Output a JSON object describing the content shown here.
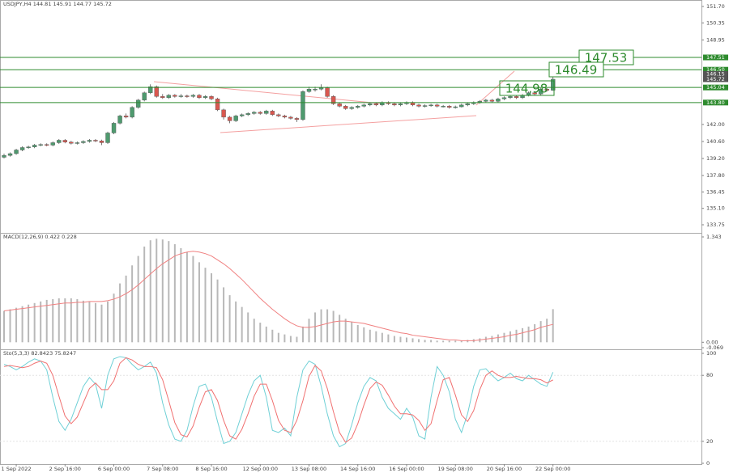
{
  "chart_data": [
    {
      "type": "candlestick",
      "title": "USDJPY,H4 144.81 145.91 144.77 145.72",
      "categories": [
        null,
        null,
        "1 Sep 2022",
        null,
        null,
        null,
        null,
        null,
        null,
        null,
        "2 Sep 16:00",
        null,
        null,
        null,
        null,
        null,
        null,
        null,
        "6 Sep 00:00",
        null,
        null,
        null,
        null,
        null,
        null,
        null,
        "7 Sep 08:00",
        null,
        null,
        null,
        null,
        null,
        null,
        null,
        "8 Sep 16:00",
        null,
        null,
        null,
        null,
        null,
        null,
        null,
        "12 Sep 00:00",
        null,
        null,
        null,
        null,
        null,
        null,
        null,
        "13 Sep 08:00",
        null,
        null,
        null,
        null,
        null,
        null,
        null,
        "14 Sep 16:00",
        null,
        null,
        null,
        null,
        null,
        null,
        null,
        "16 Sep 00:00",
        null,
        null,
        null,
        null,
        null,
        null,
        null,
        "19 Sep 08:00",
        null,
        null,
        null,
        null,
        null,
        null,
        null,
        "20 Sep 16:00",
        null,
        null,
        null,
        null,
        null,
        null,
        null,
        "22 Sep 00:00"
      ],
      "values": [
        [
          139.3,
          139.6,
          139.2,
          139.45
        ],
        [
          139.45,
          139.7,
          139.35,
          139.6
        ],
        [
          139.6,
          140.0,
          139.5,
          139.9
        ],
        [
          139.9,
          140.2,
          139.8,
          140.1
        ],
        [
          140.1,
          140.25,
          140.0,
          140.15
        ],
        [
          140.15,
          140.4,
          140.05,
          140.3
        ],
        [
          140.3,
          140.45,
          140.2,
          140.35
        ],
        [
          140.35,
          140.45,
          140.2,
          140.3
        ],
        [
          140.3,
          140.6,
          140.2,
          140.5
        ],
        [
          140.5,
          140.8,
          140.4,
          140.7
        ],
        [
          140.7,
          140.8,
          140.45,
          140.55
        ],
        [
          140.55,
          140.65,
          140.35,
          140.45
        ],
        [
          140.45,
          140.6,
          140.35,
          140.5
        ],
        [
          140.5,
          140.7,
          140.4,
          140.6
        ],
        [
          140.6,
          140.8,
          140.5,
          140.7
        ],
        [
          140.7,
          140.8,
          140.55,
          140.65
        ],
        [
          140.65,
          140.75,
          140.3,
          140.5
        ],
        [
          140.5,
          141.4,
          140.4,
          141.3
        ],
        [
          141.3,
          142.2,
          141.2,
          142.1
        ],
        [
          142.1,
          142.8,
          142.0,
          142.7
        ],
        [
          142.7,
          142.9,
          142.5,
          142.6
        ],
        [
          142.6,
          143.5,
          142.5,
          143.4
        ],
        [
          143.4,
          144.1,
          143.3,
          144.0
        ],
        [
          144.0,
          144.7,
          143.9,
          144.6
        ],
        [
          144.6,
          145.3,
          144.5,
          145.1
        ],
        [
          145.1,
          145.2,
          144.2,
          144.3
        ],
        [
          144.3,
          144.5,
          144.1,
          144.2
        ],
        [
          144.2,
          144.5,
          144.1,
          144.4
        ],
        [
          144.4,
          144.5,
          144.2,
          144.3
        ],
        [
          144.3,
          144.5,
          144.2,
          144.35
        ],
        [
          144.35,
          144.45,
          144.2,
          144.3
        ],
        [
          144.3,
          144.5,
          144.2,
          144.4
        ],
        [
          144.4,
          144.5,
          144.1,
          144.2
        ],
        [
          144.2,
          144.4,
          144.1,
          144.3
        ],
        [
          144.3,
          144.4,
          144.0,
          144.1
        ],
        [
          144.1,
          144.2,
          143.1,
          143.2
        ],
        [
          143.2,
          143.3,
          142.4,
          142.6
        ],
        [
          142.6,
          142.7,
          142.1,
          142.3
        ],
        [
          142.3,
          142.8,
          142.2,
          142.7
        ],
        [
          142.7,
          142.9,
          142.6,
          142.8
        ],
        [
          142.8,
          143.0,
          142.7,
          142.9
        ],
        [
          142.9,
          143.1,
          142.8,
          143.0
        ],
        [
          143.0,
          143.1,
          142.8,
          142.9
        ],
        [
          142.9,
          143.2,
          142.8,
          143.1
        ],
        [
          143.1,
          143.2,
          142.7,
          142.8
        ],
        [
          142.8,
          142.9,
          142.6,
          142.7
        ],
        [
          142.7,
          142.8,
          142.5,
          142.6
        ],
        [
          142.6,
          142.7,
          142.4,
          142.5
        ],
        [
          142.5,
          142.6,
          142.2,
          142.4
        ],
        [
          142.4,
          144.8,
          142.3,
          144.7
        ],
        [
          144.7,
          145.1,
          144.6,
          144.9
        ],
        [
          144.9,
          145.1,
          144.7,
          144.9
        ],
        [
          144.9,
          145.3,
          144.8,
          145.0
        ],
        [
          145.0,
          145.1,
          144.2,
          144.3
        ],
        [
          144.3,
          144.4,
          143.6,
          143.7
        ],
        [
          143.7,
          143.8,
          143.4,
          143.5
        ],
        [
          143.5,
          143.6,
          143.2,
          143.3
        ],
        [
          143.3,
          143.5,
          143.2,
          143.4
        ],
        [
          143.4,
          143.6,
          143.3,
          143.5
        ],
        [
          143.5,
          143.7,
          143.4,
          143.6
        ],
        [
          143.6,
          143.8,
          143.5,
          143.7
        ],
        [
          143.7,
          143.8,
          143.5,
          143.6
        ],
        [
          143.6,
          143.9,
          143.5,
          143.8
        ],
        [
          143.8,
          143.9,
          143.6,
          143.7
        ],
        [
          143.7,
          143.8,
          143.5,
          143.6
        ],
        [
          143.6,
          143.8,
          143.5,
          143.7
        ],
        [
          143.7,
          143.9,
          143.6,
          143.8
        ],
        [
          143.8,
          143.9,
          143.5,
          143.6
        ],
        [
          143.6,
          143.7,
          143.4,
          143.5
        ],
        [
          143.5,
          143.65,
          143.4,
          143.55
        ],
        [
          143.55,
          143.7,
          143.45,
          143.6
        ],
        [
          143.6,
          143.7,
          143.4,
          143.5
        ],
        [
          143.5,
          143.6,
          143.4,
          143.5
        ],
        [
          143.5,
          143.6,
          143.3,
          143.4
        ],
        [
          143.4,
          143.55,
          143.3,
          143.45
        ],
        [
          143.45,
          143.7,
          143.4,
          143.6
        ],
        [
          143.6,
          143.8,
          143.5,
          143.7
        ],
        [
          143.7,
          143.9,
          143.6,
          143.8
        ],
        [
          143.8,
          144.0,
          143.7,
          143.9
        ],
        [
          143.9,
          144.1,
          143.8,
          144.0
        ],
        [
          144.0,
          144.1,
          143.8,
          143.9
        ],
        [
          143.9,
          144.2,
          143.8,
          144.1
        ],
        [
          144.1,
          144.3,
          144.0,
          144.2
        ],
        [
          144.2,
          144.4,
          144.1,
          144.3
        ],
        [
          144.3,
          144.4,
          144.1,
          144.2
        ],
        [
          144.2,
          144.5,
          144.1,
          144.4
        ],
        [
          144.4,
          144.7,
          144.3,
          144.6
        ],
        [
          144.6,
          144.7,
          144.4,
          144.5
        ],
        [
          144.5,
          145.0,
          144.4,
          144.9
        ],
        [
          144.9,
          145.0,
          144.7,
          144.8
        ],
        [
          144.81,
          145.91,
          144.77,
          145.72
        ]
      ],
      "up_color": "#4e9a6e",
      "down_color": "#d9574f",
      "ylim": [
        133.75,
        151.7
      ],
      "yticks": [
        {
          "value": 151.7,
          "label": "151.70"
        },
        {
          "value": 150.35,
          "label": "150.35"
        },
        {
          "value": 148.95,
          "label": "148.95"
        },
        {
          "value": 142,
          "label": "142.00"
        },
        {
          "value": 140.6,
          "label": "140.60"
        },
        {
          "value": 139.2,
          "label": "139.20"
        },
        {
          "value": 137.8,
          "label": "137.80"
        },
        {
          "value": 136.45,
          "label": "136.45"
        },
        {
          "value": 135.1,
          "label": "135.10"
        },
        {
          "value": 133.75,
          "label": "133.75"
        }
      ],
      "levels": [
        {
          "value": 147.51,
          "label": "147.51"
        },
        {
          "value": 146.5,
          "label": "146.50"
        },
        {
          "value": 145.04,
          "label": "145.04"
        },
        {
          "value": 143.8,
          "label": "143.80"
        }
      ],
      "level_color": "#2e8b2e",
      "markers": [
        {
          "value": 146.15,
          "label": "146.15"
        },
        {
          "value": 145.72,
          "label": "145.72"
        }
      ],
      "marker_color": "#555555",
      "annotations": [
        "147.53",
        "146.49",
        "144.98"
      ]
    },
    {
      "type": "macd",
      "title": "MACD(12,26,9) 0.422 0.228",
      "values": [
        0.4,
        0.42,
        0.44,
        0.46,
        0.48,
        0.5,
        0.52,
        0.54,
        0.55,
        0.56,
        0.56,
        0.56,
        0.55,
        0.53,
        0.52,
        0.5,
        0.48,
        0.52,
        0.62,
        0.75,
        0.85,
        0.98,
        1.1,
        1.22,
        1.3,
        1.32,
        1.31,
        1.29,
        1.25,
        1.2,
        1.15,
        1.1,
        1.02,
        0.95,
        0.88,
        0.8,
        0.7,
        0.6,
        0.52,
        0.45,
        0.38,
        0.3,
        0.25,
        0.2,
        0.16,
        0.12,
        0.1,
        0.08,
        0.07,
        0.2,
        0.3,
        0.38,
        0.42,
        0.42,
        0.4,
        0.35,
        0.3,
        0.26,
        0.22,
        0.19,
        0.16,
        0.14,
        0.12,
        0.1,
        0.08,
        0.07,
        0.06,
        0.05,
        0.04,
        0.03,
        0.03,
        0.02,
        0.02,
        0.02,
        0.02,
        0.02,
        0.03,
        0.04,
        0.05,
        0.07,
        0.08,
        0.1,
        0.12,
        0.14,
        0.16,
        0.18,
        0.2,
        0.23,
        0.27,
        0.3,
        0.422
      ],
      "color": "#b8b8b8",
      "signal": {
        "color": "#f08080",
        "values": [
          0.4,
          0.41,
          0.42,
          0.43,
          0.44,
          0.45,
          0.46,
          0.47,
          0.48,
          0.49,
          0.5,
          0.5,
          0.51,
          0.51,
          0.52,
          0.52,
          0.52,
          0.53,
          0.55,
          0.58,
          0.62,
          0.67,
          0.73,
          0.8,
          0.87,
          0.94,
          1.0,
          1.05,
          1.1,
          1.13,
          1.15,
          1.16,
          1.15,
          1.13,
          1.1,
          1.05,
          1.0,
          0.94,
          0.87,
          0.8,
          0.72,
          0.64,
          0.56,
          0.49,
          0.42,
          0.36,
          0.3,
          0.25,
          0.21,
          0.19,
          0.19,
          0.2,
          0.22,
          0.24,
          0.26,
          0.27,
          0.27,
          0.26,
          0.25,
          0.24,
          0.22,
          0.2,
          0.18,
          0.16,
          0.14,
          0.12,
          0.11,
          0.09,
          0.08,
          0.07,
          0.06,
          0.05,
          0.04,
          0.03,
          0.03,
          0.02,
          0.02,
          0.02,
          0.03,
          0.04,
          0.05,
          0.06,
          0.07,
          0.09,
          0.1,
          0.12,
          0.14,
          0.16,
          0.19,
          0.21,
          0.228
        ]
      },
      "ylim": [
        -0.069,
        1.343
      ],
      "yticks": [
        1.343,
        {
          "value": 0,
          "label": "0.00"
        },
        -0.069
      ]
    },
    {
      "type": "stochastic",
      "title": "Sto(5,3,3) 82.8423 75.8247",
      "series": [
        {
          "color": "#6fd0d6",
          "values": [
            90,
            88,
            85,
            88,
            92,
            95,
            93,
            85,
            60,
            38,
            30,
            40,
            55,
            70,
            78,
            72,
            50,
            80,
            95,
            97,
            96,
            90,
            85,
            88,
            92,
            82,
            55,
            35,
            22,
            20,
            30,
            52,
            70,
            72,
            60,
            38,
            18,
            20,
            28,
            45,
            62,
            75,
            80,
            60,
            30,
            28,
            32,
            25,
            60,
            85,
            93,
            90,
            70,
            45,
            25,
            15,
            18,
            35,
            55,
            70,
            78,
            75,
            60,
            50,
            45,
            40,
            50,
            42,
            25,
            22,
            60,
            88,
            80,
            65,
            40,
            28,
            45,
            70,
            85,
            86,
            80,
            75,
            78,
            82,
            77,
            75,
            80,
            76,
            72,
            70,
            82.8423
          ]
        },
        {
          "color": "#f07070",
          "values": [
            88,
            89,
            88,
            87,
            88,
            91,
            93,
            91,
            80,
            61,
            43,
            36,
            42,
            55,
            68,
            73,
            67,
            67,
            75,
            91,
            96,
            94,
            90,
            88,
            88,
            87,
            76,
            57,
            37,
            26,
            24,
            34,
            51,
            65,
            67,
            57,
            39,
            25,
            22,
            31,
            45,
            61,
            72,
            72,
            57,
            39,
            30,
            28,
            39,
            57,
            79,
            89,
            84,
            68,
            47,
            28,
            19,
            23,
            36,
            53,
            68,
            74,
            71,
            62,
            52,
            45,
            45,
            44,
            39,
            30,
            36,
            57,
            76,
            78,
            62,
            44,
            38,
            48,
            67,
            80,
            84,
            80,
            78,
            78,
            79,
            78,
            77,
            77,
            76,
            73,
            75.8247
          ]
        }
      ],
      "ylim": [
        0,
        100
      ],
      "yticks": [
        100,
        80,
        20,
        0
      ]
    }
  ]
}
